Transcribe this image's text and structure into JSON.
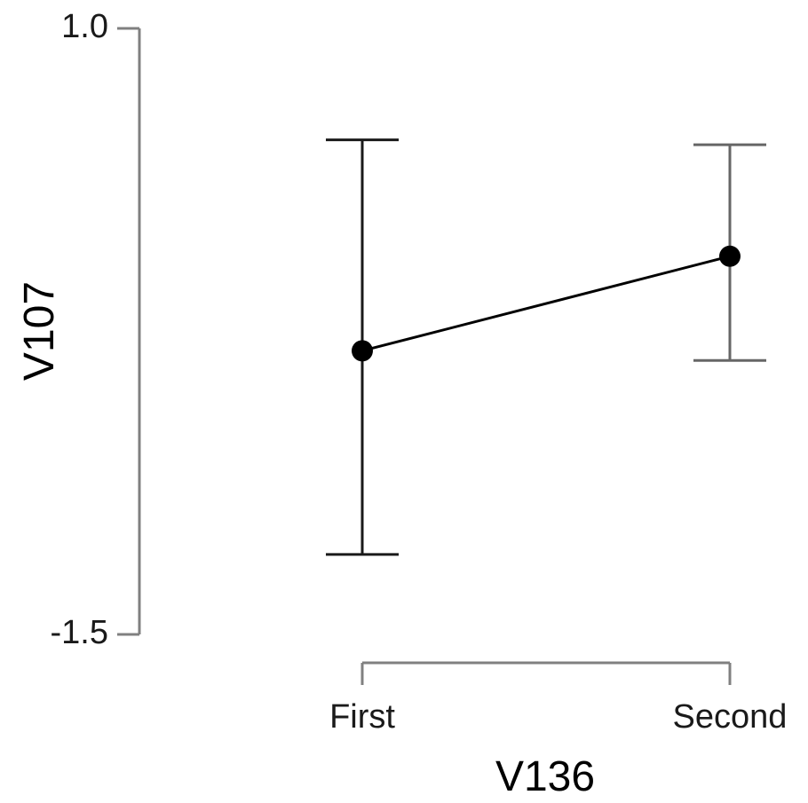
{
  "chart_data": {
    "type": "line",
    "xlabel": "V136",
    "ylabel": "V107",
    "categories": [
      "First",
      "Second"
    ],
    "ylim": [
      -1.5,
      1.0
    ],
    "yticks": [
      "1.0",
      "-1.5"
    ],
    "series": [
      {
        "values": [
          -0.33,
          0.06
        ],
        "ci_lower": [
          -1.17,
          -0.37
        ],
        "ci_upper": [
          0.54,
          0.52
        ]
      }
    ],
    "grid": false,
    "legend": "none"
  },
  "colors": {
    "axis": "#808080",
    "line": "#000000",
    "errbar_first": "#1a1a1a",
    "errbar_second": "#666666"
  }
}
